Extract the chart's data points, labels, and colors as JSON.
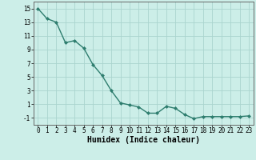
{
  "x": [
    0,
    1,
    2,
    3,
    4,
    5,
    6,
    7,
    8,
    9,
    10,
    11,
    12,
    13,
    14,
    15,
    16,
    17,
    18,
    19,
    20,
    21,
    22,
    23
  ],
  "y": [
    15,
    13.5,
    13,
    10,
    10.3,
    9.2,
    6.8,
    5.2,
    3.0,
    1.2,
    0.9,
    0.6,
    -0.3,
    -0.3,
    0.7,
    0.4,
    -0.5,
    -1.1,
    -0.8,
    -0.8,
    -0.8,
    -0.8,
    -0.8,
    -0.7
  ],
  "line_color": "#2e7d6e",
  "marker": "D",
  "marker_size": 2.0,
  "bg_color": "#cceee8",
  "grid_color": "#aad4ce",
  "xlabel": "Humidex (Indice chaleur)",
  "ylim": [
    -2,
    16
  ],
  "xlim": [
    -0.5,
    23.5
  ],
  "yticks": [
    -1,
    1,
    3,
    5,
    7,
    9,
    11,
    13,
    15
  ],
  "xticks": [
    0,
    1,
    2,
    3,
    4,
    5,
    6,
    7,
    8,
    9,
    10,
    11,
    12,
    13,
    14,
    15,
    16,
    17,
    18,
    19,
    20,
    21,
    22,
    23
  ],
  "tick_fontsize": 5.5,
  "xlabel_fontsize": 7.0,
  "line_width": 1.0
}
